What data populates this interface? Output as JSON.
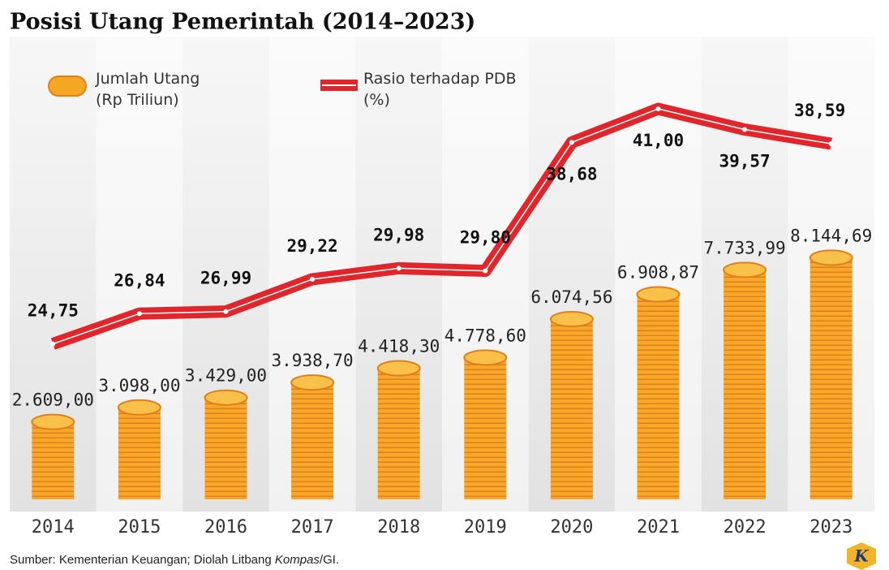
{
  "chart_data": {
    "type": "bar-line",
    "title": "Posisi Utang Pemerintah (2014–2023)",
    "categories": [
      "2014",
      "2015",
      "2016",
      "2017",
      "2018",
      "2019",
      "2020",
      "2021",
      "2022",
      "2023"
    ],
    "series": [
      {
        "name": "Jumlah Utang (Rp Triliun)",
        "type": "bar",
        "color": "#f5a623",
        "values": [
          2609.0,
          3098.0,
          3429.0,
          3938.7,
          4418.3,
          4778.6,
          6074.56,
          6908.87,
          7733.99,
          8144.69
        ],
        "value_labels": [
          "2.609,00",
          "3.098,00",
          "3.429,00",
          "3.938,70",
          "4.418,30",
          "4.778,60",
          "6.074,56",
          "6.908,87",
          "7.733,99",
          "8.144,69"
        ]
      },
      {
        "name": "Rasio terhadap PDB (%)",
        "type": "line",
        "axis": "y2",
        "color": "#e0262b",
        "values": [
          24.75,
          26.84,
          26.99,
          29.22,
          29.98,
          29.8,
          38.68,
          41.0,
          39.57,
          38.59
        ],
        "value_labels": [
          "24,75",
          "26,84",
          "26,99",
          "29,22",
          "29,98",
          "29,80",
          "38,68",
          "41,00",
          "39,57",
          "38,59"
        ]
      }
    ],
    "ylim": [
      0,
      15600
    ],
    "y2lim": [
      14,
      46
    ],
    "source": {
      "prefix": "Sumber: Kementerian Keuangan; Diolah Litbang ",
      "italic": "Kompas",
      "suffix": "/GI."
    },
    "logo": "K"
  }
}
